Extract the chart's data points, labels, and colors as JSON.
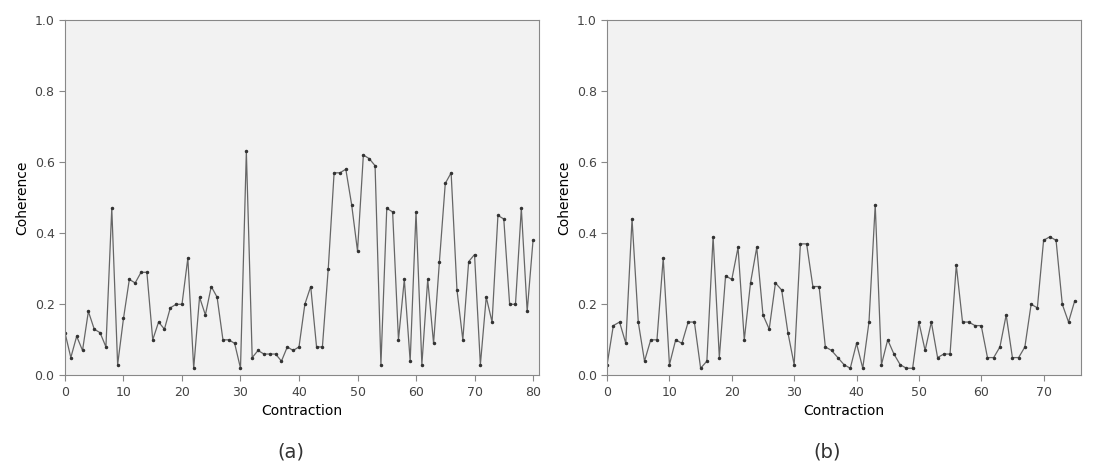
{
  "plot_a": {
    "x": [
      0,
      1,
      2,
      3,
      4,
      5,
      6,
      7,
      8,
      9,
      10,
      11,
      12,
      13,
      14,
      15,
      16,
      17,
      18,
      19,
      20,
      21,
      22,
      23,
      24,
      25,
      26,
      27,
      28,
      29,
      30,
      31,
      32,
      33,
      34,
      35,
      36,
      37,
      38,
      39,
      40,
      41,
      42,
      43,
      44,
      45,
      46,
      47,
      48,
      49,
      50,
      51,
      52,
      53,
      54,
      55,
      56,
      57,
      58,
      59,
      60,
      61,
      62,
      63,
      64,
      65,
      66,
      67,
      68,
      69,
      70,
      71,
      72,
      73,
      74,
      75,
      76,
      77,
      78,
      79,
      80
    ],
    "y": [
      0.12,
      0.05,
      0.11,
      0.07,
      0.18,
      0.13,
      0.12,
      0.08,
      0.47,
      0.03,
      0.16,
      0.27,
      0.26,
      0.29,
      0.29,
      0.1,
      0.15,
      0.13,
      0.19,
      0.2,
      0.2,
      0.33,
      0.02,
      0.22,
      0.17,
      0.25,
      0.22,
      0.1,
      0.1,
      0.09,
      0.02,
      0.63,
      0.05,
      0.07,
      0.06,
      0.06,
      0.06,
      0.04,
      0.08,
      0.07,
      0.08,
      0.2,
      0.25,
      0.08,
      0.08,
      0.3,
      0.57,
      0.57,
      0.58,
      0.48,
      0.35,
      0.62,
      0.61,
      0.59,
      0.03,
      0.47,
      0.46,
      0.1,
      0.27,
      0.04,
      0.46,
      0.03,
      0.27,
      0.09,
      0.32,
      0.54,
      0.57,
      0.24,
      0.1,
      0.32,
      0.34,
      0.03,
      0.22,
      0.15,
      0.45,
      0.44,
      0.2,
      0.2,
      0.47,
      0.18,
      0.38
    ]
  },
  "plot_b": {
    "x": [
      0,
      1,
      2,
      3,
      4,
      5,
      6,
      7,
      8,
      9,
      10,
      11,
      12,
      13,
      14,
      15,
      16,
      17,
      18,
      19,
      20,
      21,
      22,
      23,
      24,
      25,
      26,
      27,
      28,
      29,
      30,
      31,
      32,
      33,
      34,
      35,
      36,
      37,
      38,
      39,
      40,
      41,
      42,
      43,
      44,
      45,
      46,
      47,
      48,
      49,
      50,
      51,
      52,
      53,
      54,
      55,
      56,
      57,
      58,
      59,
      60,
      61,
      62,
      63,
      64,
      65,
      66,
      67,
      68,
      69,
      70,
      71,
      72,
      73,
      74,
      75
    ],
    "y": [
      0.03,
      0.14,
      0.15,
      0.09,
      0.44,
      0.15,
      0.04,
      0.1,
      0.1,
      0.33,
      0.03,
      0.1,
      0.09,
      0.15,
      0.15,
      0.02,
      0.04,
      0.39,
      0.05,
      0.28,
      0.27,
      0.36,
      0.1,
      0.26,
      0.36,
      0.17,
      0.13,
      0.26,
      0.24,
      0.12,
      0.03,
      0.37,
      0.37,
      0.25,
      0.25,
      0.08,
      0.07,
      0.05,
      0.03,
      0.02,
      0.09,
      0.02,
      0.15,
      0.48,
      0.03,
      0.1,
      0.06,
      0.03,
      0.02,
      0.02,
      0.15,
      0.07,
      0.15,
      0.05,
      0.06,
      0.06,
      0.31,
      0.15,
      0.15,
      0.14,
      0.14,
      0.05,
      0.05,
      0.08,
      0.17,
      0.05,
      0.05,
      0.08,
      0.2,
      0.19,
      0.38,
      0.39,
      0.38,
      0.2,
      0.15,
      0.21
    ]
  },
  "xlabel": "Contraction",
  "ylabel": "Coherence",
  "ylim": [
    0.0,
    1.0
  ],
  "yticks": [
    0.0,
    0.2,
    0.4,
    0.6,
    0.8,
    1.0
  ],
  "xlim_a": [
    0,
    81
  ],
  "xlim_b": [
    0,
    76
  ],
  "xticks_a": [
    0,
    10,
    20,
    30,
    40,
    50,
    60,
    70,
    80
  ],
  "xticks_b": [
    0,
    10,
    20,
    30,
    40,
    50,
    60,
    70
  ],
  "label_a": "(a)",
  "label_b": "(b)",
  "line_color": "#666666",
  "marker": ".",
  "marker_size": 3,
  "linewidth": 0.9,
  "background_color": "#f2f2f2",
  "font_size_axis": 10,
  "font_size_tick": 9,
  "font_size_caption": 14
}
